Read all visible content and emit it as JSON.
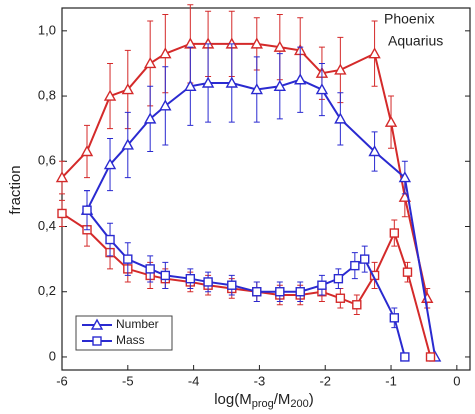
{
  "chart_data": {
    "type": "line",
    "y_label": "fraction",
    "x_label": {
      "base": "log(M",
      "sub1": "prog",
      "mid": "/M",
      "sub2": "200",
      "end": ")"
    },
    "xlim": [
      -6,
      0.2
    ],
    "xticks": [
      -6,
      -5,
      -4,
      -3,
      -2,
      -1,
      0
    ],
    "ylim": [
      -0.04,
      1.07
    ],
    "yticks": [
      0,
      {
        "value": 0.2,
        "label": "0,2"
      },
      {
        "value": 0.4,
        "label": "0,4"
      },
      {
        "value": 0.6,
        "label": "0,6"
      },
      {
        "value": 0.8,
        "label": "0,8"
      },
      {
        "value": 1.0,
        "label": "1,0"
      }
    ],
    "color_legend": [
      {
        "name": "Phoenix",
        "color": "#d42a2a"
      },
      {
        "name": "Aquarius",
        "color": "#2a2ad0"
      }
    ],
    "marker_legend": [
      {
        "name": "Number",
        "marker": "triangle"
      },
      {
        "name": "Mass",
        "marker": "square"
      }
    ],
    "series": [
      {
        "color": "#d42a2a",
        "marker": "triangle",
        "x": [
          -6,
          -5.62,
          -5.27,
          -5.0,
          -4.66,
          -4.43,
          -4.05,
          -3.78,
          -3.42,
          -3.04,
          -2.69,
          -2.38,
          -2.05,
          -1.77,
          -1.25,
          -1.0,
          -0.79,
          -0.45
        ],
        "values": [
          0.55,
          0.63,
          0.8,
          0.82,
          0.9,
          0.93,
          0.96,
          0.96,
          0.96,
          0.96,
          0.95,
          0.94,
          0.87,
          0.88,
          0.93,
          0.72,
          0.49,
          0.18
        ],
        "errors": [
          0.05,
          0.08,
          0.1,
          0.12,
          0.13,
          0.12,
          0.12,
          0.1,
          0.1,
          0.08,
          0.1,
          0.1,
          0.08,
          0.1,
          0.1,
          0.08,
          0.06,
          0.03
        ]
      },
      {
        "color": "#2a2ad0",
        "marker": "triangle",
        "x": [
          -5.62,
          -5.27,
          -5.0,
          -4.66,
          -4.43,
          -4.05,
          -3.78,
          -3.42,
          -3.04,
          -2.69,
          -2.38,
          -2.05,
          -1.77,
          -1.25,
          -0.79,
          -0.33
        ],
        "values": [
          0.45,
          0.59,
          0.65,
          0.73,
          0.77,
          0.83,
          0.84,
          0.84,
          0.82,
          0.83,
          0.85,
          0.82,
          0.73,
          0.63,
          0.55,
          0
        ],
        "errors": [
          0.06,
          0.08,
          0.1,
          0.1,
          0.12,
          0.12,
          0.12,
          0.12,
          0.1,
          0.1,
          0.1,
          0.08,
          0.08,
          0.06,
          0.05,
          0
        ]
      },
      {
        "color": "#d42a2a",
        "marker": "square",
        "x": [
          -6,
          -5.62,
          -5.27,
          -5.0,
          -4.66,
          -4.43,
          -4.05,
          -3.78,
          -3.42,
          -3.04,
          -2.69,
          -2.38,
          -2.05,
          -1.77,
          -1.52,
          -1.25,
          -0.95,
          -0.75,
          -0.4
        ],
        "values": [
          0.44,
          0.39,
          0.32,
          0.27,
          0.25,
          0.24,
          0.23,
          0.22,
          0.21,
          0.2,
          0.19,
          0.19,
          0.2,
          0.18,
          0.16,
          0.25,
          0.38,
          0.26,
          0
        ],
        "errors": [
          0.04,
          0.05,
          0.05,
          0.04,
          0.04,
          0.03,
          0.03,
          0.03,
          0.03,
          0.03,
          0.03,
          0.03,
          0.03,
          0.03,
          0.03,
          0.04,
          0.04,
          0.03,
          0
        ]
      },
      {
        "color": "#2a2ad0",
        "marker": "square",
        "x": [
          -5.62,
          -5.27,
          -5.0,
          -4.66,
          -4.43,
          -4.05,
          -3.78,
          -3.42,
          -3.04,
          -2.69,
          -2.38,
          -2.05,
          -1.8,
          -1.55,
          -1.4,
          -0.95,
          -0.79
        ],
        "values": [
          0.45,
          0.36,
          0.3,
          0.27,
          0.25,
          0.24,
          0.23,
          0.22,
          0.2,
          0.2,
          0.2,
          0.22,
          0.24,
          0.28,
          0.3,
          0.12,
          0
        ],
        "errors": [
          0.06,
          0.05,
          0.05,
          0.04,
          0.04,
          0.03,
          0.03,
          0.03,
          0.03,
          0.03,
          0.03,
          0.03,
          0.03,
          0.04,
          0.04,
          0.03,
          0
        ]
      }
    ]
  }
}
